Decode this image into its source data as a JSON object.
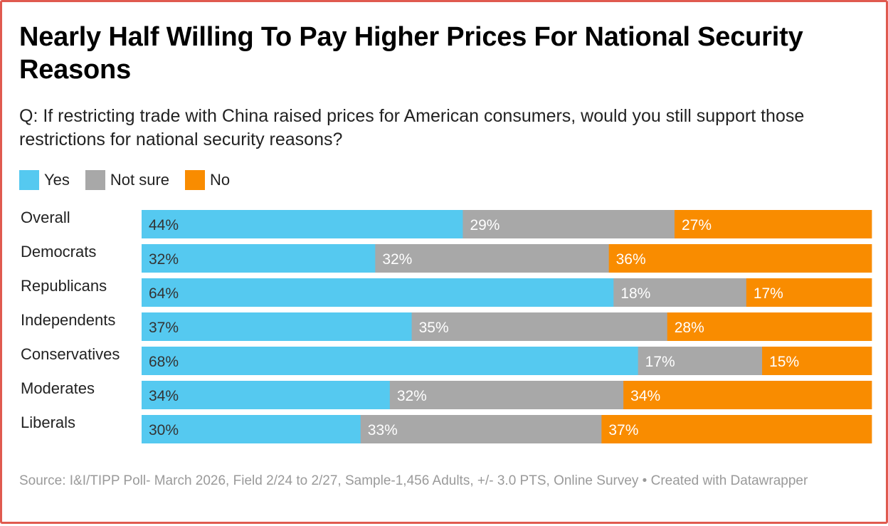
{
  "title": "Nearly Half Willing To Pay Higher Prices For National Security Reasons",
  "subtitle": "Q: If restricting trade with China raised prices for American consumers, would you still support those restrictions for national security reasons?",
  "source": "Source: I&I/TIPP Poll- March 2026, Field 2/24 to 2/27, Sample-1,456 Adults, +/- 3.0 PTS, Online Survey  • Created with Datawrapper",
  "colors": {
    "yes": "#55c9f0",
    "not_sure": "#a8a8a8",
    "no": "#f98c00"
  },
  "legend": [
    {
      "label": "Yes",
      "color": "#55c9f0"
    },
    {
      "label": "Not sure",
      "color": "#a8a8a8"
    },
    {
      "label": "No",
      "color": "#f98c00"
    }
  ],
  "chart_data": {
    "type": "bar",
    "orientation": "horizontal",
    "stacked": true,
    "categories": [
      "Overall",
      "Democrats",
      "Republicans",
      "Independents",
      "Conservatives",
      "Moderates",
      "Liberals"
    ],
    "series": [
      {
        "name": "Yes",
        "values": [
          44,
          32,
          64,
          37,
          68,
          34,
          30
        ],
        "labels": [
          "44%",
          "32%",
          "64%",
          "37%",
          "68%",
          "34%",
          "30%"
        ]
      },
      {
        "name": "Not sure",
        "values": [
          29,
          32,
          18,
          35,
          17,
          32,
          33
        ],
        "labels": [
          "29%",
          "32%",
          "18%",
          "35%",
          "17%",
          "32%",
          "33%"
        ]
      },
      {
        "name": "No",
        "values": [
          27,
          36,
          17,
          28,
          15,
          34,
          37
        ],
        "labels": [
          "27%",
          "36%",
          "17%",
          "28%",
          "15%",
          "34%",
          "37%"
        ]
      }
    ],
    "legend_position": "top-left",
    "grid": false
  }
}
